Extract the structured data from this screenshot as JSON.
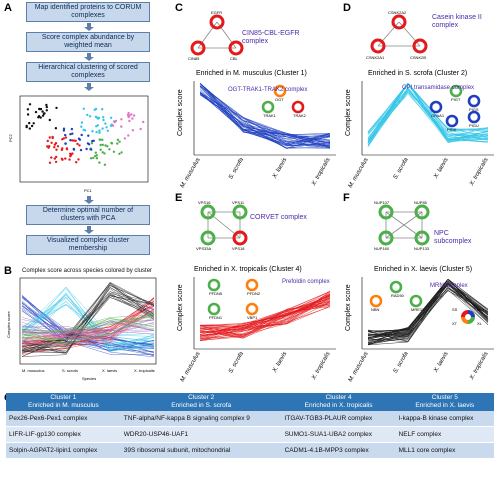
{
  "panels": {
    "A": "A",
    "B": "B",
    "C": "C",
    "D": "D",
    "E": "E",
    "F": "F",
    "G": "G"
  },
  "flow": {
    "step1": "Map identified proteins to CORUM complexes",
    "step2": "Score complex abundance by weighted mean",
    "step3": "Hierarchical clustering of scored complexes",
    "step4": "Determine optimal number of clusters with PCA",
    "step5": "Visualized complex cluster membership"
  },
  "pca": {
    "xlabel": "PC1",
    "ylabel": "PC2"
  },
  "panelB": {
    "title": "Complex score across species colored by cluster",
    "ylabel": "Complex score",
    "xlabel": "Species"
  },
  "species": [
    "M. musculus",
    "S. scrofa",
    "X. laevis",
    "X. tropicalis"
  ],
  "ylabel": "Complex score",
  "C": {
    "network": [
      "EGFR",
      "CBL",
      "CIN85"
    ],
    "complex": "CIN85-CBL-EGFR complex",
    "enriched": "Enriched in M. musculus (Cluster 1)",
    "inset_complex": "OGT-TRAK1-TRAK2 complex",
    "inset_nodes": [
      "OGT",
      "TRAK1",
      "TRAK2"
    ]
  },
  "D": {
    "network": [
      "CSNK2A2",
      "CSNK2A1",
      "CSNK2B"
    ],
    "complex": "Casein kinase II complex",
    "enriched": "Enriched in S. scrofa (Cluster 2)",
    "inset_complex": "GPI transamidase complex",
    "inset_nodes": [
      "PIGT",
      "PIGS",
      "PIGU",
      "PIGK",
      "GPAA1"
    ]
  },
  "E": {
    "network": [
      "VPS16",
      "VPS11",
      "VPS33A",
      "VPS18"
    ],
    "complex": "CORVET complex",
    "enriched": "Enriched in X. tropicalis (Cluster 4)",
    "inset_complex": "Prefoldin complex",
    "inset_nodes": [
      "PFDN5",
      "PFDN2",
      "PFDN1",
      "VBP1"
    ]
  },
  "F": {
    "network": [
      "NUP107",
      "NUP85",
      "NUP160",
      "NUP133"
    ],
    "complex": "NPC subcomplex",
    "enriched": "Enriched in X. laevis (Cluster 5)",
    "inset_complex": "MRN complex",
    "inset_nodes": [
      "RAD50",
      "NBN",
      "MRE11"
    ],
    "legend": [
      "SS",
      "MM",
      "XT",
      "XL"
    ]
  },
  "G": {
    "headers": [
      {
        "title": "Cluster 1",
        "sub": "Enriched in M. musculus"
      },
      {
        "title": "Cluster 2",
        "sub": "Enriched in S. scrofa"
      },
      {
        "title": "Cluster 4",
        "sub": "Enriched in X. tropicalis"
      },
      {
        "title": "Cluster 5",
        "sub": "Enriched in X. laevis"
      }
    ],
    "rows": [
      [
        "Pex26-Pex6-Pex1 complex",
        "TNF-alpha/NF-kappa B signaling complex 9",
        "ITGAV-TGB3-PLAUR complex",
        "I-kappa-B kinase complex"
      ],
      [
        "LIFR-LIF-gp130 complex",
        "WDR20-USP46-UAF1",
        "SUMO1-SUA1-UBA2 complex",
        "NELF complex"
      ],
      [
        "Solpin-AGPAT2-lipin1 complex",
        "39S ribosomal subunit, mitochondrial",
        "CADM1-4.1B-MPP3 complex",
        "MLL1 core complex"
      ]
    ]
  },
  "colors": {
    "C": "#1f3fbf",
    "D": "#33c5e8",
    "E": "#e31a1c",
    "F": "#1a1a1a",
    "flowbox": "#c7d8ec",
    "table_header": "#2e75b6"
  }
}
